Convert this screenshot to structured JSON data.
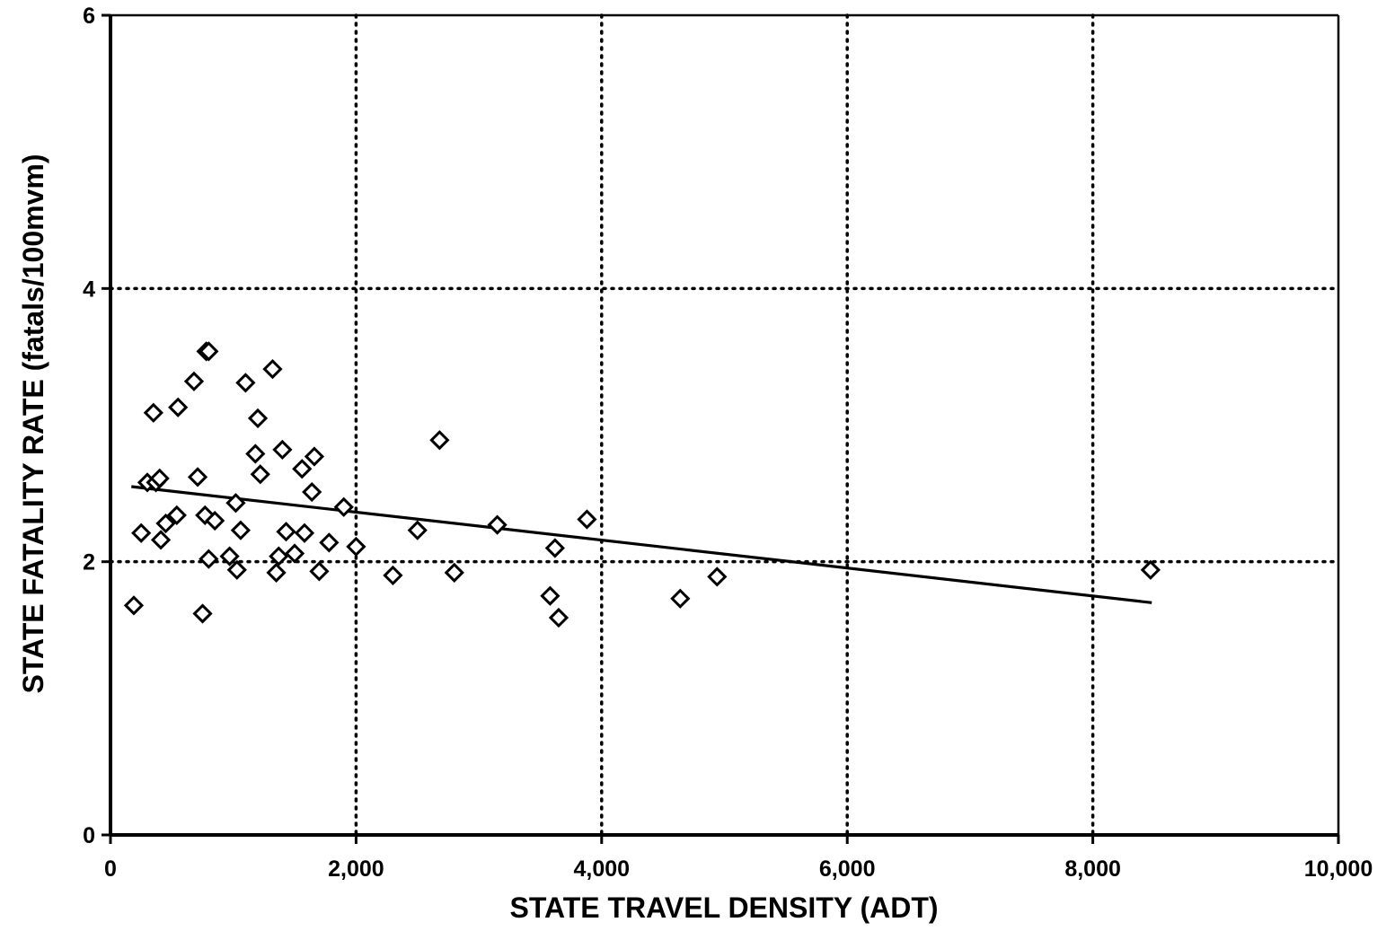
{
  "chart_data": {
    "type": "scatter",
    "title": "",
    "xlabel": "STATE TRAVEL DENSITY (ADT)",
    "ylabel": "STATE FATALITY RATE (fatals/100mvm)",
    "xlim": [
      0,
      10000
    ],
    "ylim": [
      0,
      6
    ],
    "x_ticks": [
      0,
      2000,
      4000,
      6000,
      8000,
      10000
    ],
    "x_tick_labels": [
      "0",
      "2,000",
      "4,000",
      "6,000",
      "8,000",
      "10,000"
    ],
    "y_ticks": [
      0,
      2,
      4,
      6
    ],
    "y_tick_labels": [
      "0",
      "2",
      "4",
      "6"
    ],
    "grid": "dotted at labeled ticks",
    "legend": "none",
    "marker": "open diamond",
    "color": "#000000",
    "series": [
      {
        "type": "scatter",
        "points": [
          [
            190,
            1.68
          ],
          [
            250,
            2.21
          ],
          [
            300,
            2.58
          ],
          [
            350,
            3.09
          ],
          [
            370,
            2.58
          ],
          [
            400,
            2.61
          ],
          [
            410,
            2.16
          ],
          [
            450,
            2.28
          ],
          [
            540,
            2.34
          ],
          [
            550,
            3.13
          ],
          [
            680,
            3.32
          ],
          [
            710,
            2.62
          ],
          [
            750,
            1.62
          ],
          [
            770,
            2.34
          ],
          [
            780,
            3.54
          ],
          [
            800,
            3.54
          ],
          [
            800,
            2.02
          ],
          [
            850,
            2.3
          ],
          [
            970,
            2.04
          ],
          [
            1020,
            2.43
          ],
          [
            1030,
            1.94
          ],
          [
            1060,
            2.23
          ],
          [
            1100,
            3.31
          ],
          [
            1180,
            2.79
          ],
          [
            1200,
            3.05
          ],
          [
            1220,
            2.64
          ],
          [
            1320,
            3.41
          ],
          [
            1350,
            1.92
          ],
          [
            1370,
            2.04
          ],
          [
            1400,
            2.82
          ],
          [
            1430,
            2.22
          ],
          [
            1500,
            2.06
          ],
          [
            1560,
            2.68
          ],
          [
            1580,
            2.21
          ],
          [
            1640,
            2.51
          ],
          [
            1660,
            2.77
          ],
          [
            1700,
            1.93
          ],
          [
            1780,
            2.14
          ],
          [
            1900,
            2.4
          ],
          [
            2000,
            2.11
          ],
          [
            2300,
            1.9
          ],
          [
            2500,
            2.23
          ],
          [
            2680,
            2.89
          ],
          [
            2800,
            1.92
          ],
          [
            3150,
            2.27
          ],
          [
            3580,
            1.75
          ],
          [
            3620,
            2.1
          ],
          [
            3650,
            1.59
          ],
          [
            3880,
            2.31
          ],
          [
            4640,
            1.73
          ],
          [
            4940,
            1.89
          ],
          [
            8470,
            1.94
          ]
        ]
      },
      {
        "type": "line",
        "points": [
          [
            170,
            2.55
          ],
          [
            8480,
            1.7
          ]
        ]
      }
    ]
  }
}
